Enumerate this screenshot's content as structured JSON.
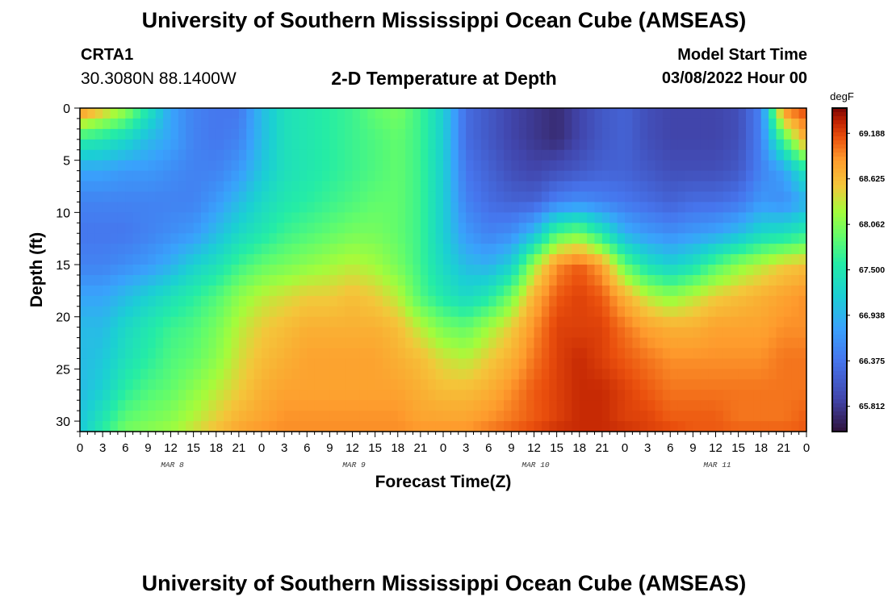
{
  "page": {
    "title": "University of Southern Mississippi Ocean Cube (AMSEAS)",
    "station": "CRTA1",
    "coords": "30.3080N  88.1400W",
    "subtitle": "2-D Temperature at Depth",
    "model_start_label": "Model Start Time",
    "model_start_value": "03/08/2022 Hour 00"
  },
  "chart_data": {
    "type": "heatmap",
    "title": "2-D Temperature at Depth",
    "xlabel": "Forecast Time(Z)",
    "ylabel": "Depth (ft)",
    "colorbar_label": "degF",
    "x_range_hours": [
      0,
      96
    ],
    "y_range_ft": [
      0,
      31
    ],
    "x_tick_hours": [
      0,
      3,
      6,
      9,
      12,
      15,
      18,
      21,
      24,
      27,
      30,
      33,
      36,
      39,
      42,
      45,
      48,
      51,
      54,
      57,
      60,
      63,
      66,
      69,
      72,
      75,
      78,
      81,
      84,
      87,
      90,
      93,
      96
    ],
    "x_tick_labels": [
      "0",
      "3",
      "6",
      "9",
      "12",
      "15",
      "18",
      "21",
      "0",
      "3",
      "6",
      "9",
      "12",
      "15",
      "18",
      "21",
      "0",
      "3",
      "6",
      "9",
      "12",
      "15",
      "18",
      "21",
      "0",
      "3",
      "6",
      "9",
      "12",
      "15",
      "18",
      "21",
      "0"
    ],
    "date_labels": [
      {
        "label": "MAR 8",
        "hour": 12
      },
      {
        "label": "MAR 9",
        "hour": 36
      },
      {
        "label": "MAR 10",
        "hour": 60
      },
      {
        "label": "MAR 11",
        "hour": 84
      }
    ],
    "y_ticks": [
      0,
      5,
      10,
      15,
      20,
      25,
      30
    ],
    "colorbar_ticks": [
      69.188,
      68.625,
      68.062,
      67.5,
      66.938,
      66.375,
      65.812
    ],
    "colorbar_range": [
      65.5,
      69.5
    ],
    "time_hours": [
      0,
      3,
      6,
      9,
      12,
      15,
      18,
      21,
      24,
      27,
      30,
      33,
      36,
      39,
      42,
      45,
      48,
      51,
      54,
      57,
      60,
      63,
      66,
      69,
      72,
      75,
      78,
      81,
      84,
      87,
      90,
      93,
      96
    ],
    "depth_ft": [
      0,
      3,
      6,
      9,
      12,
      15,
      18,
      21,
      24,
      27,
      30,
      31
    ],
    "values_degF": [
      [
        69.0,
        67.6,
        66.8,
        66.5,
        66.4,
        66.5,
        66.8,
        67.0,
        67.0,
        67.0,
        67.1,
        67.1
      ],
      [
        68.6,
        67.5,
        66.8,
        66.5,
        66.4,
        66.5,
        66.8,
        67.0,
        67.1,
        67.2,
        67.5,
        67.6
      ],
      [
        68.2,
        67.3,
        66.7,
        66.5,
        66.4,
        66.6,
        67.0,
        67.3,
        67.4,
        67.6,
        67.9,
        68.0
      ],
      [
        67.5,
        67.0,
        66.7,
        66.5,
        66.5,
        66.7,
        67.2,
        67.5,
        67.6,
        67.8,
        68.0,
        68.1
      ],
      [
        66.8,
        66.8,
        66.6,
        66.5,
        66.6,
        66.9,
        67.4,
        67.7,
        67.8,
        67.9,
        68.1,
        68.2
      ],
      [
        66.5,
        66.5,
        66.5,
        66.5,
        66.7,
        67.2,
        67.6,
        67.8,
        67.9,
        68.1,
        68.3,
        68.4
      ],
      [
        66.4,
        66.4,
        66.5,
        66.7,
        67.0,
        67.4,
        67.8,
        68.0,
        68.1,
        68.3,
        68.5,
        68.6
      ],
      [
        66.4,
        66.5,
        66.7,
        67.0,
        67.3,
        67.7,
        68.1,
        68.3,
        68.4,
        68.5,
        68.7,
        68.8
      ],
      [
        67.0,
        67.0,
        67.1,
        67.3,
        67.5,
        67.9,
        68.3,
        68.5,
        68.6,
        68.7,
        68.8,
        68.9
      ],
      [
        67.4,
        67.4,
        67.4,
        67.5,
        67.7,
        68.0,
        68.4,
        68.6,
        68.7,
        68.8,
        68.9,
        68.9
      ],
      [
        67.5,
        67.5,
        67.5,
        67.6,
        67.8,
        68.1,
        68.5,
        68.7,
        68.8,
        68.8,
        68.9,
        68.9
      ],
      [
        67.6,
        67.6,
        67.6,
        67.7,
        67.9,
        68.2,
        68.5,
        68.7,
        68.8,
        68.8,
        68.9,
        68.9
      ],
      [
        67.7,
        67.7,
        67.7,
        67.8,
        68.0,
        68.3,
        68.6,
        68.7,
        68.8,
        68.8,
        68.9,
        68.9
      ],
      [
        67.9,
        67.8,
        67.8,
        67.9,
        68.0,
        68.2,
        68.5,
        68.7,
        68.8,
        68.8,
        68.9,
        68.9
      ],
      [
        68.0,
        67.9,
        67.9,
        67.9,
        67.9,
        68.0,
        68.3,
        68.6,
        68.7,
        68.8,
        68.9,
        68.9
      ],
      [
        67.7,
        67.7,
        67.7,
        67.7,
        67.7,
        67.7,
        67.8,
        68.3,
        68.6,
        68.7,
        68.8,
        68.9
      ],
      [
        67.2,
        67.2,
        67.2,
        67.2,
        67.2,
        67.3,
        67.5,
        68.0,
        68.4,
        68.6,
        68.8,
        68.9
      ],
      [
        66.3,
        66.3,
        66.4,
        66.5,
        66.7,
        67.0,
        67.3,
        67.9,
        68.3,
        68.6,
        68.8,
        68.9
      ],
      [
        66.1,
        66.1,
        66.2,
        66.3,
        66.5,
        66.9,
        67.5,
        68.2,
        68.5,
        68.7,
        68.9,
        69.0
      ],
      [
        65.9,
        65.9,
        66.0,
        66.2,
        66.6,
        67.2,
        68.0,
        68.5,
        68.7,
        68.9,
        69.0,
        69.1
      ],
      [
        65.8,
        65.8,
        65.9,
        66.2,
        67.0,
        68.2,
        68.7,
        68.9,
        69.0,
        69.1,
        69.1,
        69.2
      ],
      [
        65.7,
        65.7,
        66.0,
        66.5,
        67.8,
        68.9,
        69.1,
        69.2,
        69.2,
        69.2,
        69.2,
        69.3
      ],
      [
        65.9,
        65.9,
        66.1,
        66.6,
        68.0,
        69.1,
        69.2,
        69.2,
        69.3,
        69.3,
        69.3,
        69.3
      ],
      [
        66.1,
        66.1,
        66.2,
        66.5,
        67.5,
        68.8,
        69.1,
        69.2,
        69.2,
        69.3,
        69.3,
        69.3
      ],
      [
        66.2,
        66.2,
        66.2,
        66.4,
        66.9,
        67.9,
        68.7,
        69.0,
        69.1,
        69.2,
        69.2,
        69.3
      ],
      [
        66.0,
        66.0,
        66.1,
        66.3,
        66.7,
        67.4,
        68.3,
        68.8,
        69.0,
        69.1,
        69.2,
        69.2
      ],
      [
        65.9,
        65.9,
        66.0,
        66.2,
        66.6,
        67.2,
        68.1,
        68.7,
        68.9,
        69.0,
        69.1,
        69.2
      ],
      [
        65.9,
        65.9,
        66.0,
        66.3,
        66.7,
        67.4,
        68.3,
        68.7,
        68.9,
        69.0,
        69.1,
        69.1
      ],
      [
        65.9,
        65.9,
        66.0,
        66.3,
        66.8,
        67.8,
        68.5,
        68.8,
        68.9,
        69.0,
        69.1,
        69.1
      ],
      [
        66.0,
        66.0,
        66.1,
        66.4,
        67.0,
        68.1,
        68.6,
        68.8,
        68.9,
        69.0,
        69.0,
        69.1
      ],
      [
        66.5,
        66.5,
        66.5,
        66.7,
        67.3,
        68.3,
        68.7,
        68.8,
        68.9,
        69.0,
        69.0,
        69.1
      ],
      [
        69.0,
        67.8,
        66.8,
        66.6,
        67.4,
        68.5,
        68.8,
        68.9,
        69.0,
        69.0,
        69.0,
        69.1
      ],
      [
        69.2,
        68.8,
        67.5,
        66.9,
        67.6,
        68.6,
        68.9,
        68.9,
        69.0,
        69.0,
        69.1,
        69.1
      ]
    ]
  }
}
